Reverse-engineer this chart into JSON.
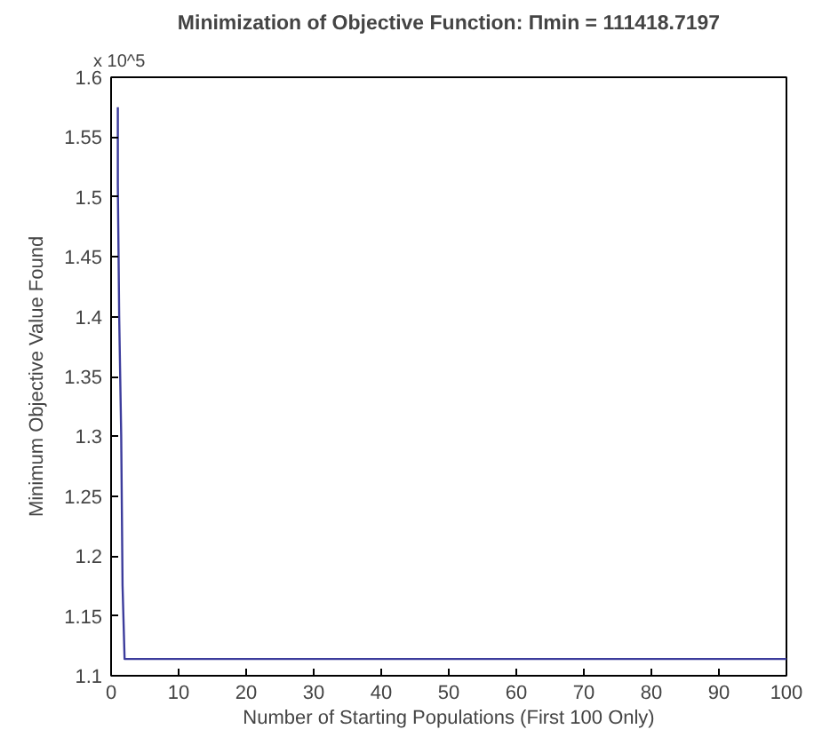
{
  "chart_data": {
    "type": "line",
    "title": "Minimization of Objective Function: Πmin = 111418.7197",
    "xlabel": "Number of Starting Populations (First 100 Only)",
    "ylabel": "Minimum Objective Value Found",
    "annotations": [
      "x 10^5"
    ],
    "x": [
      1,
      1,
      1.2,
      1.5,
      1.7,
      2,
      100
    ],
    "series": [
      {
        "color": "#3c3c9c",
        "values": [
          1.575,
          1.51,
          1.4,
          1.3,
          1.175,
          1.114,
          1.114
        ]
      }
    ],
    "xlim": [
      0,
      100
    ],
    "xticks": [
      0,
      10,
      20,
      30,
      40,
      50,
      60,
      70,
      80,
      90,
      100
    ],
    "ylim": [
      1.1,
      1.6
    ],
    "yticks": [
      1.1,
      1.15,
      1.2,
      1.25,
      1.3,
      1.35,
      1.4,
      1.45,
      1.5,
      1.55,
      1.6
    ],
    "grid": false
  }
}
